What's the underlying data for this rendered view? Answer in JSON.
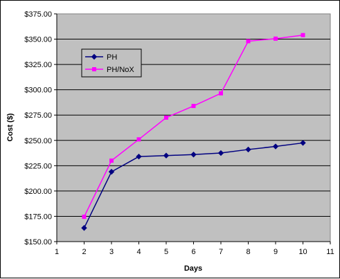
{
  "chart_data": {
    "type": "line",
    "title": "",
    "xlabel": "Days",
    "ylabel": "Cost ($)",
    "xlim": [
      1,
      11
    ],
    "ylim": [
      150,
      375
    ],
    "x_ticks": [
      "1",
      "2",
      "3",
      "4",
      "5",
      "6",
      "7",
      "8",
      "9",
      "10",
      "11"
    ],
    "y_ticks": [
      "$150.00",
      "$175.00",
      "$200.00",
      "$225.00",
      "$250.00",
      "$275.00",
      "$300.00",
      "$325.00",
      "$350.00",
      "$375.00"
    ],
    "grid": "horizontal",
    "legend_position": "top-left",
    "plot_background": "#c0c0c0",
    "series": [
      {
        "name": "PH",
        "color": "#000080",
        "marker": "diamond",
        "x": [
          2,
          3,
          4,
          5,
          6,
          7,
          8,
          9,
          10
        ],
        "y": [
          163.5,
          219,
          234,
          235,
          236,
          237.5,
          241,
          244,
          247.5
        ]
      },
      {
        "name": "PH/NoX",
        "color": "#ff00ff",
        "marker": "square",
        "x": [
          2,
          3,
          4,
          5,
          6,
          7,
          8,
          9,
          10
        ],
        "y": [
          174.5,
          230,
          251,
          272.5,
          284,
          296.5,
          348,
          350.5,
          354
        ]
      }
    ]
  }
}
